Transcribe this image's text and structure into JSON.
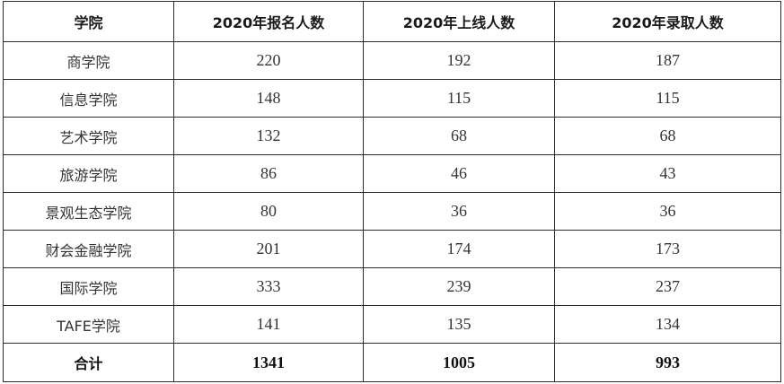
{
  "table": {
    "headers": [
      "学院",
      "2020年报名人数",
      "2020年上线人数",
      "2020年录取人数"
    ],
    "rows": [
      {
        "college": "商学院",
        "applied": "220",
        "passed": "192",
        "admitted": "187"
      },
      {
        "college": "信息学院",
        "applied": "148",
        "passed": "115",
        "admitted": "115"
      },
      {
        "college": "艺术学院",
        "applied": "132",
        "passed": "68",
        "admitted": "68"
      },
      {
        "college": "旅游学院",
        "applied": "86",
        "passed": "46",
        "admitted": "43"
      },
      {
        "college": "景观生态学院",
        "applied": "80",
        "passed": "36",
        "admitted": "36"
      },
      {
        "college": "财会金融学院",
        "applied": "201",
        "passed": "174",
        "admitted": "173"
      },
      {
        "college": "国际学院",
        "applied": "333",
        "passed": "239",
        "admitted": "237"
      },
      {
        "college": "TAFE学院",
        "applied": "141",
        "passed": "135",
        "admitted": "134"
      }
    ],
    "total": {
      "label": "合计",
      "applied": "1341",
      "passed": "1005",
      "admitted": "993"
    }
  },
  "chart_data": {
    "type": "table",
    "columns": [
      "学院",
      "2020年报名人数",
      "2020年上线人数",
      "2020年录取人数"
    ],
    "categories": [
      "商学院",
      "信息学院",
      "艺术学院",
      "旅游学院",
      "景观生态学院",
      "财会金融学院",
      "国际学院",
      "TAFE学院",
      "合计"
    ],
    "series": [
      {
        "name": "2020年报名人数",
        "values": [
          220,
          148,
          132,
          86,
          80,
          201,
          333,
          141,
          1341
        ]
      },
      {
        "name": "2020年上线人数",
        "values": [
          192,
          115,
          68,
          46,
          36,
          174,
          239,
          135,
          1005
        ]
      },
      {
        "name": "2020年录取人数",
        "values": [
          187,
          115,
          68,
          43,
          36,
          173,
          237,
          134,
          993
        ]
      }
    ]
  }
}
